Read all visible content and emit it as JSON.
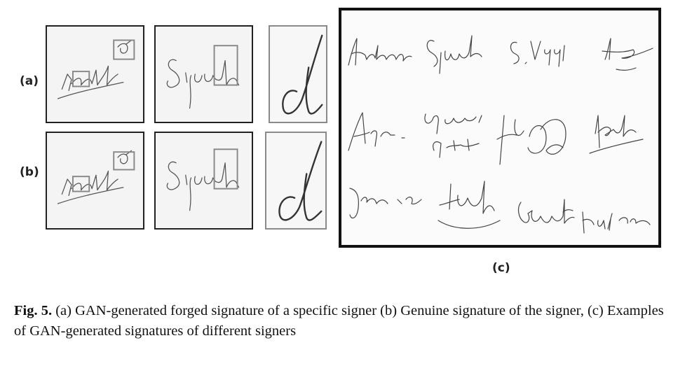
{
  "figure": {
    "row_labels": [
      "(a)",
      "(b)"
    ],
    "panel_c_label": "(c)",
    "caption": {
      "figure_number": "Fig. 5.",
      "text": " (a) GAN-generated forged signature of a specific signer (b) Genuine signature of the signer, (c) Examples of GAN-generated signatures of different signers"
    }
  }
}
